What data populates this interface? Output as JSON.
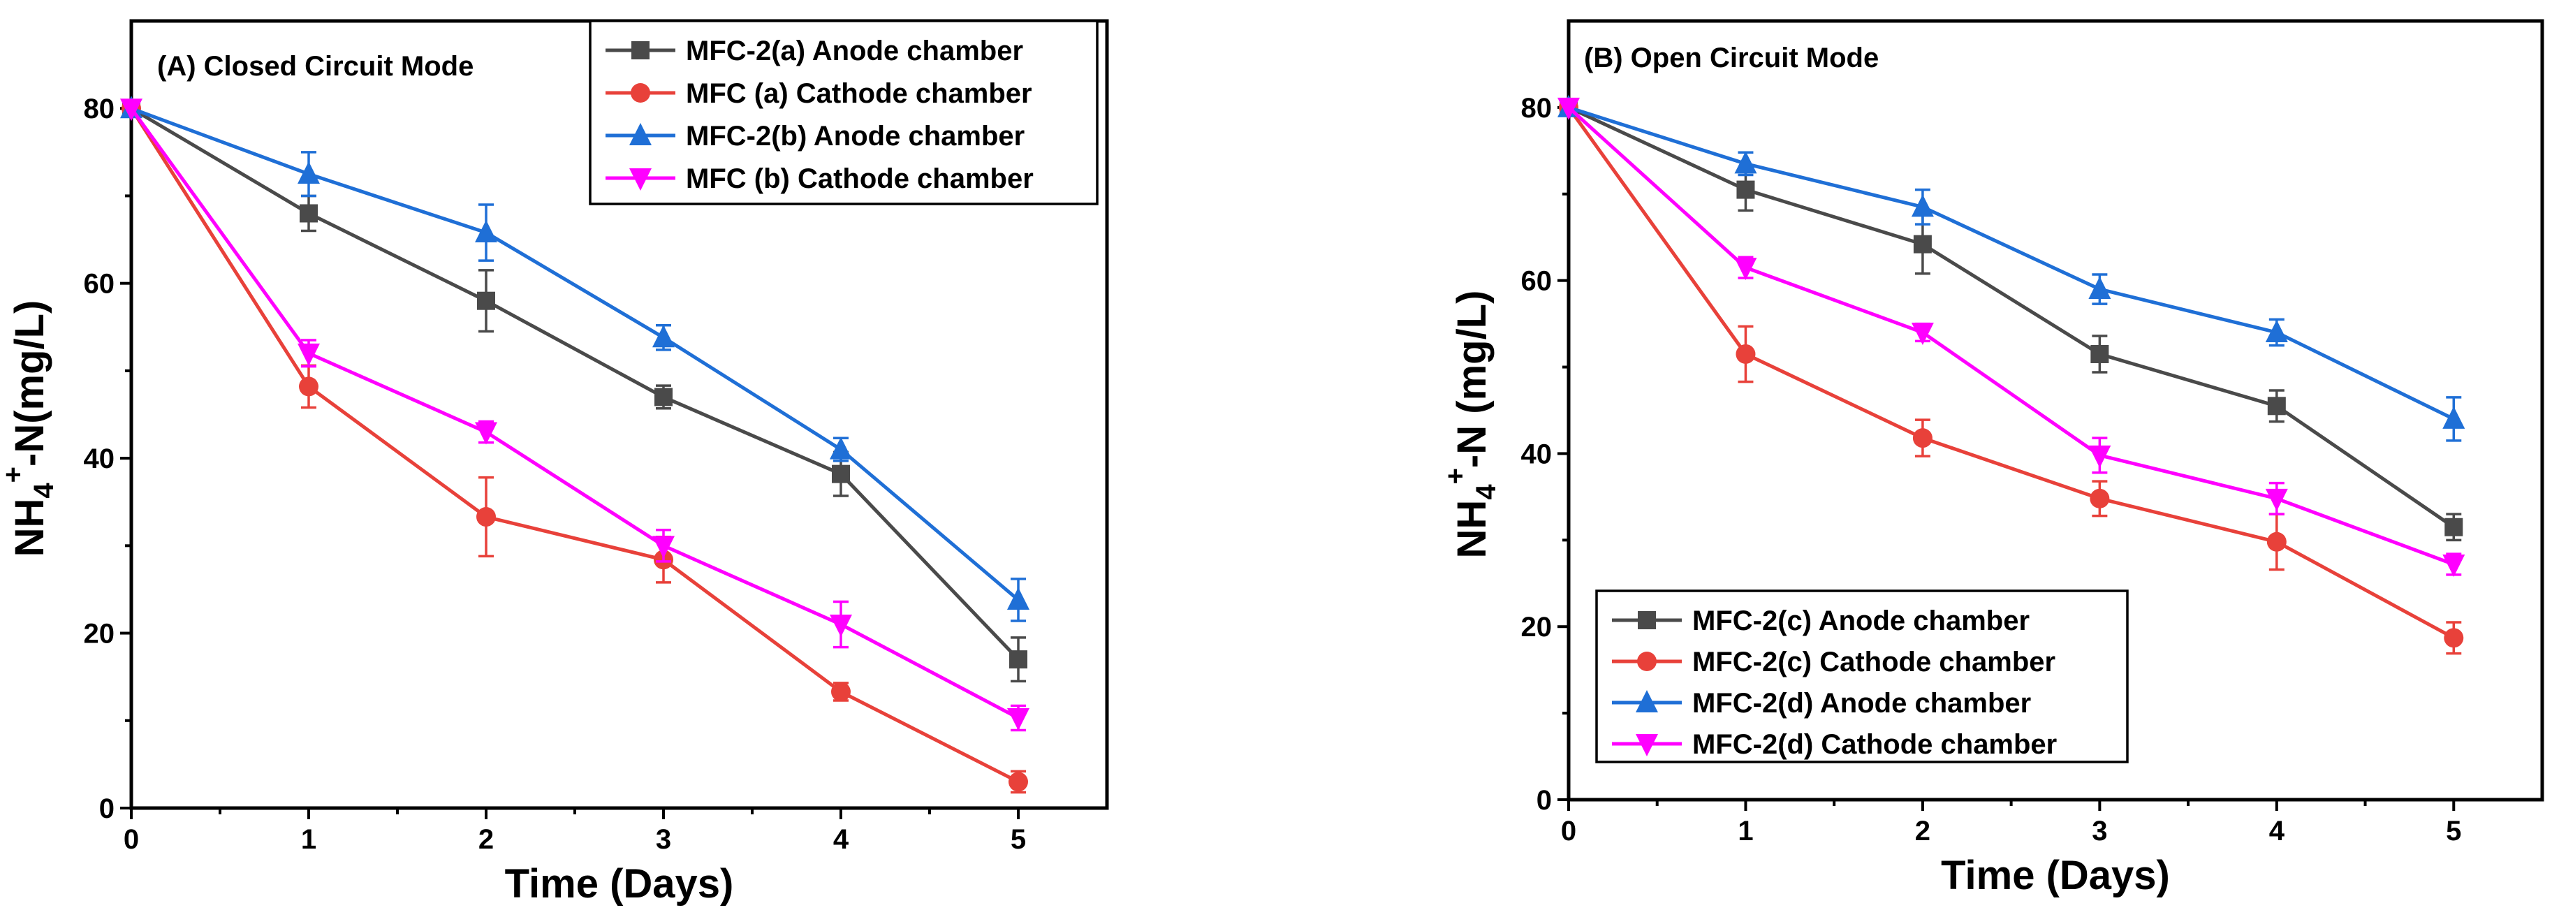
{
  "chart_data": [
    {
      "id": "A",
      "type": "line",
      "title": "(A) Closed Circuit Mode",
      "xlabel": "Time (Days)",
      "ylabel_main": "NH",
      "ylabel_sub": "4",
      "ylabel_sup": "+",
      "ylabel_rest": "-N(mg/L)",
      "xlim": [
        0,
        5.5
      ],
      "ylim": [
        0,
        90
      ],
      "xticks": [
        "0",
        "1",
        "2",
        "3",
        "4",
        "5"
      ],
      "yticks": [
        "0",
        "20",
        "40",
        "60",
        "80"
      ],
      "legend_position": "top-right",
      "x": [
        0,
        1,
        2,
        3,
        4,
        5
      ],
      "series": [
        {
          "name": "MFC-2(a) Anode chamber",
          "color": "#4a4a4a",
          "marker": "square",
          "values": [
            80,
            68,
            58,
            47,
            38.2,
            17
          ],
          "errors": [
            0,
            2,
            3.5,
            1.3,
            2.5,
            2.5
          ]
        },
        {
          "name": "MFC (a) Cathode chamber",
          "color": "#e8413a",
          "marker": "circle",
          "values": [
            80,
            48.2,
            33.3,
            28.4,
            13.3,
            3
          ],
          "errors": [
            0,
            2.4,
            4.5,
            2.6,
            1,
            1.2
          ]
        },
        {
          "name": "MFC-2(b) Anode chamber",
          "color": "#1f6fd6",
          "marker": "triangle-up",
          "values": [
            80,
            72.5,
            65.8,
            53.8,
            41,
            23.8
          ],
          "errors": [
            0,
            2.5,
            3.2,
            1.4,
            1.3,
            2.4
          ]
        },
        {
          "name": "MFC (b) Cathode chamber",
          "color": "#ff00ff",
          "marker": "triangle-down",
          "values": [
            80,
            52,
            43,
            30,
            21,
            10.3
          ],
          "errors": [
            0,
            1.5,
            1.2,
            1.8,
            2.6,
            1.4
          ]
        }
      ]
    },
    {
      "id": "B",
      "type": "line",
      "title": "(B) Open Circuit Mode",
      "xlabel": "Time (Days)",
      "ylabel_main": "NH",
      "ylabel_sub": "4",
      "ylabel_sup": "+",
      "ylabel_rest": "-N (mg/L)",
      "xlim": [
        0,
        5.5
      ],
      "ylim": [
        0,
        90
      ],
      "xticks": [
        "0",
        "1",
        "2",
        "3",
        "4",
        "5"
      ],
      "yticks": [
        "0",
        "20",
        "40",
        "60",
        "80"
      ],
      "legend_position": "bottom-left",
      "x": [
        0,
        1,
        2,
        3,
        4,
        5
      ],
      "series": [
        {
          "name": "MFC-2(c) Anode chamber",
          "color": "#4a4a4a",
          "marker": "square",
          "values": [
            80,
            70.5,
            64.2,
            51.5,
            45.5,
            31.5
          ],
          "errors": [
            0,
            2.4,
            3.4,
            2.1,
            1.8,
            1.5
          ]
        },
        {
          "name": "MFC-2(c) Cathode chamber",
          "color": "#e8413a",
          "marker": "circle",
          "values": [
            80,
            51.5,
            41.8,
            34.8,
            29.8,
            18.7
          ],
          "errors": [
            0,
            3.2,
            2.1,
            2,
            3.2,
            1.8
          ]
        },
        {
          "name": "MFC-2(d) Anode chamber",
          "color": "#1f6fd6",
          "marker": "triangle-up",
          "values": [
            80,
            73.5,
            68.5,
            59,
            54,
            44
          ],
          "errors": [
            0,
            1.3,
            2,
            1.7,
            1.5,
            2.5
          ]
        },
        {
          "name": "MFC-2(d) Cathode chamber",
          "color": "#ff00ff",
          "marker": "triangle-down",
          "values": [
            80,
            61.5,
            54,
            39.8,
            34.8,
            27.2
          ],
          "errors": [
            0,
            1.2,
            1,
            2,
            1.8,
            1.2
          ]
        }
      ]
    }
  ]
}
